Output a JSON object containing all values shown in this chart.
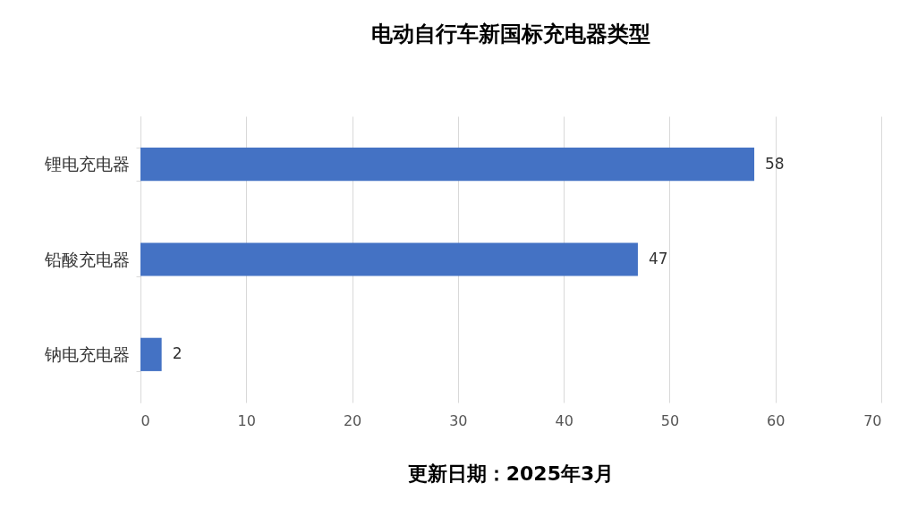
{
  "chart_data": {
    "type": "bar",
    "orientation": "horizontal",
    "title": "电动自行车新国标充电器类型",
    "categories": [
      "锂电充电器",
      "铅酸充电器",
      "钠电充电器"
    ],
    "values": [
      58,
      47,
      2
    ],
    "color": "#4472c4",
    "data_labels": true,
    "xlim": [
      0,
      70
    ],
    "xticks": [
      0,
      10,
      20,
      30,
      40,
      50,
      60,
      70
    ],
    "grid": "x",
    "annotations": [
      "更新日期：2025年3月"
    ]
  }
}
